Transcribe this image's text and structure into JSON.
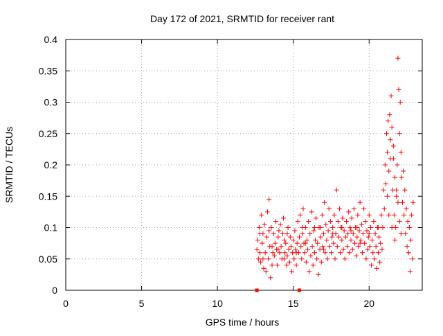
{
  "chart_data": {
    "type": "scatter",
    "title": "Day 172 of 2021, SRMTID for receiver rant",
    "xlabel": "GPS time / hours",
    "ylabel": "SRMTID / TECUs",
    "xlim": [
      0,
      23.5
    ],
    "ylim": [
      0,
      0.4
    ],
    "grid": true,
    "x_ticks": [
      0,
      5,
      10,
      15,
      20
    ],
    "x_tick_labels": [
      "0",
      "5",
      "10",
      "15",
      "20"
    ],
    "y_ticks": [
      0,
      0.05,
      0.1,
      0.15,
      0.2,
      0.25,
      0.3,
      0.35,
      0.4
    ],
    "y_tick_labels": [
      "0",
      "0.05",
      "0.1",
      "0.15",
      "0.2",
      "0.25",
      "0.3",
      "0.35",
      "0.4"
    ],
    "marker": "plus",
    "color": "#ff0000",
    "series": [
      {
        "name": "SRMTID",
        "points": [
          [
            12.6,
            0.065
          ],
          [
            12.65,
            0.08
          ],
          [
            12.7,
            0.05
          ],
          [
            12.75,
            0.1
          ],
          [
            12.8,
            0.06
          ],
          [
            12.85,
            0.045
          ],
          [
            12.9,
            0.12
          ],
          [
            12.95,
            0.075
          ],
          [
            13.0,
            0.09
          ],
          [
            13.05,
            0.035
          ],
          [
            13.1,
            0.105
          ],
          [
            13.15,
            0.06
          ],
          [
            13.2,
            0.03
          ],
          [
            13.25,
            0.085
          ],
          [
            13.3,
            0.125
          ],
          [
            13.35,
            0.05
          ],
          [
            13.4,
            0.145
          ],
          [
            13.45,
            0.07
          ],
          [
            13.5,
            0.02
          ],
          [
            13.55,
            0.1
          ],
          [
            13.6,
            0.04
          ],
          [
            13.65,
            0.06
          ],
          [
            13.7,
            0.09
          ],
          [
            13.75,
            0.055
          ],
          [
            13.8,
            0.075
          ],
          [
            13.85,
            0.11
          ],
          [
            13.9,
            0.065
          ],
          [
            13.95,
            0.04
          ],
          [
            14.0,
            0.085
          ],
          [
            14.05,
            0.095
          ],
          [
            14.1,
            0.06
          ],
          [
            14.15,
            0.105
          ],
          [
            14.2,
            0.07
          ],
          [
            14.25,
            0.05
          ],
          [
            14.3,
            0.09
          ],
          [
            14.35,
            0.115
          ],
          [
            14.4,
            0.08
          ],
          [
            14.45,
            0.06
          ],
          [
            14.5,
            0.075
          ],
          [
            14.55,
            0.04
          ],
          [
            14.6,
            0.055
          ],
          [
            14.65,
            0.1
          ],
          [
            14.7,
            0.065
          ],
          [
            14.75,
            0.045
          ],
          [
            14.8,
            0.085
          ],
          [
            14.85,
            0.07
          ],
          [
            14.9,
            0.03
          ],
          [
            14.95,
            0.06
          ],
          [
            15.0,
            0.08
          ],
          [
            15.05,
            0.05
          ],
          [
            15.1,
            0.095
          ],
          [
            15.15,
            0.065
          ],
          [
            15.2,
            0.04
          ],
          [
            15.25,
            0.075
          ],
          [
            15.3,
            0.11
          ],
          [
            15.35,
            0.06
          ],
          [
            15.4,
            0.085
          ],
          [
            15.45,
            0.12
          ],
          [
            15.5,
            0.07
          ],
          [
            15.55,
            0.05
          ],
          [
            15.6,
            0.09
          ],
          [
            15.65,
            0.13
          ],
          [
            15.7,
            0.075
          ],
          [
            15.75,
            0.06
          ],
          [
            15.8,
            0.1
          ],
          [
            15.85,
            0.045
          ],
          [
            15.9,
            0.08
          ],
          [
            15.95,
            0.065
          ],
          [
            16.0,
            0.11
          ],
          [
            16.05,
            0.03
          ],
          [
            16.1,
            0.09
          ],
          [
            16.15,
            0.055
          ],
          [
            16.2,
            0.125
          ],
          [
            16.25,
            0.07
          ],
          [
            16.3,
            0.04
          ],
          [
            16.35,
            0.095
          ],
          [
            16.4,
            0.06
          ],
          [
            16.45,
            0.08
          ],
          [
            16.5,
            0.115
          ],
          [
            16.55,
            0.05
          ],
          [
            16.6,
            0.075
          ],
          [
            16.65,
            0.025
          ],
          [
            16.7,
            0.1
          ],
          [
            16.75,
            0.065
          ],
          [
            16.8,
            0.085
          ],
          [
            16.85,
            0.045
          ],
          [
            16.9,
            0.12
          ],
          [
            16.95,
            0.07
          ],
          [
            17.0,
            0.09
          ],
          [
            17.05,
            0.14
          ],
          [
            17.1,
            0.06
          ],
          [
            17.15,
            0.105
          ],
          [
            17.2,
            0.08
          ],
          [
            17.25,
            0.05
          ],
          [
            17.3,
            0.095
          ],
          [
            17.35,
            0.13
          ],
          [
            17.4,
            0.07
          ],
          [
            17.45,
            0.11
          ],
          [
            17.5,
            0.06
          ],
          [
            17.55,
            0.085
          ],
          [
            17.6,
            0.1
          ],
          [
            17.65,
            0.075
          ],
          [
            17.7,
            0.12
          ],
          [
            17.75,
            0.05
          ],
          [
            17.8,
            0.09
          ],
          [
            17.85,
            0.16
          ],
          [
            17.9,
            0.07
          ],
          [
            17.95,
            0.11
          ],
          [
            18.0,
            0.085
          ],
          [
            18.05,
            0.13
          ],
          [
            18.1,
            0.06
          ],
          [
            18.15,
            0.1
          ],
          [
            18.2,
            0.08
          ],
          [
            18.25,
            0.115
          ],
          [
            18.3,
            0.065
          ],
          [
            18.35,
            0.095
          ],
          [
            18.4,
            0.05
          ],
          [
            18.45,
            0.085
          ],
          [
            18.5,
            0.11
          ],
          [
            18.55,
            0.07
          ],
          [
            18.6,
            0.09
          ],
          [
            18.65,
            0.125
          ],
          [
            18.7,
            0.06
          ],
          [
            18.75,
            0.1
          ],
          [
            18.8,
            0.08
          ],
          [
            18.85,
            0.115
          ],
          [
            18.9,
            0.065
          ],
          [
            18.95,
            0.09
          ],
          [
            19.0,
            0.13
          ],
          [
            19.05,
            0.075
          ],
          [
            19.1,
            0.1
          ],
          [
            19.15,
            0.055
          ],
          [
            19.2,
            0.085
          ],
          [
            19.25,
            0.12
          ],
          [
            19.3,
            0.07
          ],
          [
            19.35,
            0.095
          ],
          [
            19.4,
            0.14
          ],
          [
            19.45,
            0.08
          ],
          [
            19.5,
            0.105
          ],
          [
            19.55,
            0.06
          ],
          [
            19.6,
            0.09
          ],
          [
            19.65,
            0.13
          ],
          [
            19.7,
            0.075
          ],
          [
            19.75,
            0.11
          ],
          [
            19.8,
            0.05
          ],
          [
            19.85,
            0.095
          ],
          [
            19.9,
            0.065
          ],
          [
            19.95,
            0.085
          ],
          [
            20.0,
            0.12
          ],
          [
            20.05,
            0.07
          ],
          [
            20.1,
            0.1
          ],
          [
            20.15,
            0.04
          ],
          [
            20.2,
            0.08
          ],
          [
            20.25,
            0.06
          ],
          [
            20.3,
            0.11
          ],
          [
            20.35,
            0.05
          ],
          [
            20.4,
            0.09
          ],
          [
            20.45,
            0.07
          ],
          [
            20.5,
            0.035
          ],
          [
            20.55,
            0.1
          ],
          [
            20.6,
            0.06
          ],
          [
            20.65,
            0.085
          ],
          [
            20.7,
            0.045
          ],
          [
            20.75,
            0.075
          ],
          [
            20.8,
            0.12
          ],
          [
            20.85,
            0.065
          ],
          [
            20.9,
            0.1
          ],
          [
            20.95,
            0.16
          ],
          [
            21.0,
            0.13
          ],
          [
            21.05,
            0.2
          ],
          [
            21.1,
            0.17
          ],
          [
            21.15,
            0.25
          ],
          [
            21.2,
            0.22
          ],
          [
            21.25,
            0.27
          ],
          [
            21.3,
            0.19
          ],
          [
            21.35,
            0.28
          ],
          [
            21.4,
            0.24
          ],
          [
            21.45,
            0.31
          ],
          [
            21.5,
            0.26
          ],
          [
            21.55,
            0.16
          ],
          [
            21.6,
            0.21
          ],
          [
            21.65,
            0.12
          ],
          [
            21.7,
            0.18
          ],
          [
            21.75,
            0.1
          ],
          [
            21.8,
            0.15
          ],
          [
            21.85,
            0.2
          ],
          [
            21.9,
            0.37
          ],
          [
            21.95,
            0.32
          ],
          [
            22.0,
            0.25
          ],
          [
            22.05,
            0.3
          ],
          [
            22.1,
            0.22
          ],
          [
            22.15,
            0.18
          ],
          [
            22.2,
            0.14
          ],
          [
            22.25,
            0.19
          ],
          [
            22.3,
            0.12
          ],
          [
            22.35,
            0.16
          ],
          [
            22.4,
            0.09
          ],
          [
            22.45,
            0.13
          ],
          [
            22.5,
            0.07
          ],
          [
            22.55,
            0.11
          ],
          [
            22.6,
            0.06
          ],
          [
            22.65,
            0.1
          ],
          [
            22.7,
            0.03
          ],
          [
            22.75,
            0.08
          ],
          [
            22.8,
            0.12
          ],
          [
            22.85,
            0.05
          ],
          [
            22.9,
            0.14
          ],
          [
            21.2,
            0.15
          ],
          [
            21.3,
            0.12
          ],
          [
            21.5,
            0.1
          ],
          [
            21.7,
            0.08
          ],
          [
            21.9,
            0.14
          ],
          [
            22.0,
            0.11
          ],
          [
            22.1,
            0.09
          ],
          [
            21.4,
            0.21
          ],
          [
            21.6,
            0.23
          ],
          [
            21.8,
            0.16
          ],
          [
            13.0,
            0.05
          ],
          [
            13.4,
            0.095
          ],
          [
            14.0,
            0.065
          ],
          [
            14.6,
            0.09
          ],
          [
            15.2,
            0.06
          ],
          [
            15.8,
            0.075
          ],
          [
            16.4,
            0.1
          ],
          [
            17.0,
            0.065
          ],
          [
            17.6,
            0.09
          ],
          [
            18.2,
            0.1
          ],
          [
            18.8,
            0.095
          ],
          [
            19.4,
            0.075
          ],
          [
            20.0,
            0.09
          ],
          [
            20.6,
            0.1
          ],
          [
            12.8,
            0.09
          ],
          [
            13.6,
            0.07
          ],
          [
            14.4,
            0.05
          ],
          [
            15.6,
            0.1
          ],
          [
            16.8,
            0.1
          ],
          [
            19.2,
            0.1
          ]
        ]
      },
      {
        "name": "markers-at-zero",
        "style": "square",
        "points": [
          [
            12.6,
            0
          ],
          [
            15.4,
            0
          ]
        ]
      }
    ]
  }
}
